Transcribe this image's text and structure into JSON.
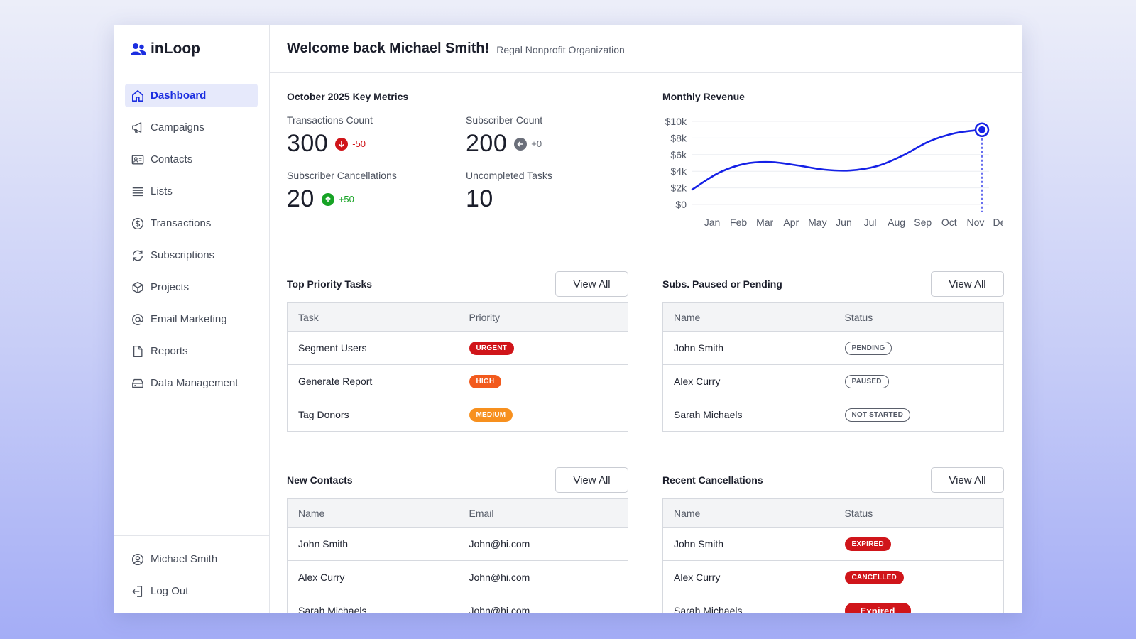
{
  "app": {
    "name": "inLoop"
  },
  "sidebar": {
    "items": [
      {
        "label": "Dashboard",
        "icon": "home-icon",
        "active": true
      },
      {
        "label": "Campaigns",
        "icon": "megaphone-icon"
      },
      {
        "label": "Contacts",
        "icon": "contact-card-icon"
      },
      {
        "label": "Lists",
        "icon": "list-icon"
      },
      {
        "label": "Transactions",
        "icon": "dollar-icon"
      },
      {
        "label": "Subscriptions",
        "icon": "refresh-icon"
      },
      {
        "label": "Projects",
        "icon": "cube-icon"
      },
      {
        "label": "Email Marketing",
        "icon": "at-icon"
      },
      {
        "label": "Reports",
        "icon": "document-icon"
      },
      {
        "label": "Data Management",
        "icon": "database-icon"
      }
    ],
    "bottom": [
      {
        "label": "Michael Smith",
        "icon": "user-circle-icon"
      },
      {
        "label": "Log Out",
        "icon": "logout-icon"
      }
    ]
  },
  "header": {
    "title": "Welcome back Michael Smith!",
    "org": "Regal Nonprofit Organization"
  },
  "metrics": {
    "title": "October 2025 Key Metrics",
    "items": [
      {
        "label": "Transactions Count",
        "value": "300",
        "delta": "-50",
        "trend": "down"
      },
      {
        "label": "Subscriber Count",
        "value": "200",
        "delta": "+0",
        "trend": "flat"
      },
      {
        "label": "Subscriber Cancellations",
        "value": "20",
        "delta": "+50",
        "trend": "up"
      },
      {
        "label": "Uncompleted Tasks",
        "value": "10"
      }
    ]
  },
  "chart_data": {
    "type": "line",
    "title": "Monthly Revenue",
    "categories": [
      "Jan",
      "Feb",
      "Mar",
      "Apr",
      "May",
      "Jun",
      "Jul",
      "Aug",
      "Sep",
      "Oct",
      "Nov",
      "Dec"
    ],
    "values": [
      1800,
      3800,
      4900,
      5100,
      4700,
      4200,
      4100,
      4600,
      5900,
      7600,
      8600,
      9000
    ],
    "ytick_labels": [
      "$10k",
      "$8k",
      "$6k",
      "$4k",
      "$2k",
      "$0"
    ],
    "ylim": [
      0,
      10000
    ],
    "highlight_index": 11,
    "line_color": "#1521e6",
    "grid": true
  },
  "tasks": {
    "title": "Top Priority Tasks",
    "view_all": "View All",
    "columns": [
      "Task",
      "Priority"
    ],
    "rows": [
      {
        "name": "Segment Users",
        "badge": "URGENT"
      },
      {
        "name": "Generate Report",
        "badge": "HIGH"
      },
      {
        "name": "Tag Donors",
        "badge": "MEDIUM"
      }
    ]
  },
  "subs": {
    "title": "Subs. Paused or Pending",
    "view_all": "View All",
    "columns": [
      "Name",
      "Status"
    ],
    "rows": [
      {
        "name": "John Smith",
        "badge": "PENDING"
      },
      {
        "name": "Alex Curry",
        "badge": "PAUSED"
      },
      {
        "name": "Sarah Michaels",
        "badge": "NOT STARTED"
      }
    ]
  },
  "contacts": {
    "title": "New Contacts",
    "view_all": "View All",
    "columns": [
      "Name",
      "Email"
    ],
    "rows": [
      {
        "name": "John Smith",
        "email": "John@hi.com"
      },
      {
        "name": "Alex Curry",
        "email": "John@hi.com"
      },
      {
        "name": "Sarah Michaels",
        "email": "John@hi.com"
      }
    ]
  },
  "cancellations": {
    "title": "Recent Cancellations",
    "view_all": "View All",
    "columns": [
      "Name",
      "Status"
    ],
    "rows": [
      {
        "name": "John Smith",
        "badge": "EXPIRED"
      },
      {
        "name": "Alex Curry",
        "badge": "CANCELLED"
      },
      {
        "name": "Sarah Michaels",
        "badge": "Expired"
      }
    ]
  }
}
